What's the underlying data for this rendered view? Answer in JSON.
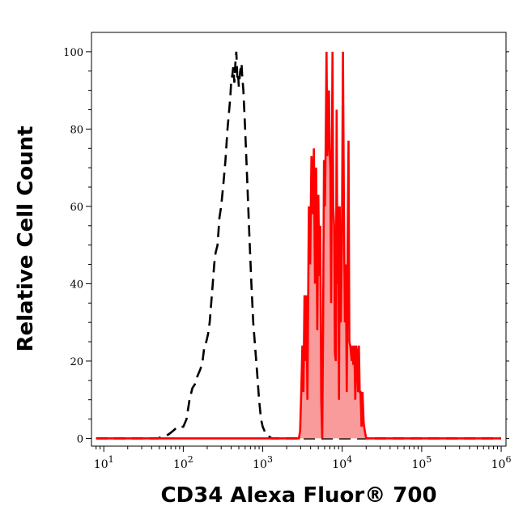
{
  "chart_data": {
    "type": "area",
    "title": "",
    "xlabel": "CD34 Alexa Fluor® 700",
    "ylabel": "Relative Cell Count",
    "xscale": "log",
    "xlim": [
      7,
      1150000.0
    ],
    "ylim": [
      -2,
      105
    ],
    "grid": false,
    "legend": "none",
    "x_ticks": [
      {
        "value": 10,
        "base": "10",
        "exp": "1"
      },
      {
        "value": 100,
        "base": "10",
        "exp": "2"
      },
      {
        "value": 1000,
        "base": "10",
        "exp": "3"
      },
      {
        "value": 10000,
        "base": "10",
        "exp": "4"
      },
      {
        "value": 100000,
        "base": "10",
        "exp": "5"
      },
      {
        "value": 1000000,
        "base": "10",
        "exp": "6"
      }
    ],
    "y_ticks": [
      {
        "value": 0,
        "label": "0"
      },
      {
        "value": 20,
        "label": "20"
      },
      {
        "value": 40,
        "label": "40"
      },
      {
        "value": 60,
        "label": "60"
      },
      {
        "value": 80,
        "label": "80"
      },
      {
        "value": 100,
        "label": "100"
      }
    ],
    "series": [
      {
        "style": "dashed",
        "color": "#000000",
        "points": [
          [
            8,
            0
          ],
          [
            20,
            0
          ],
          [
            48,
            0
          ],
          [
            55,
            0.5
          ],
          [
            65,
            1
          ],
          [
            75,
            2
          ],
          [
            85,
            3
          ],
          [
            100,
            3
          ],
          [
            110,
            5
          ],
          [
            120,
            10
          ],
          [
            130,
            13
          ],
          [
            140,
            14
          ],
          [
            150,
            16
          ],
          [
            165,
            18
          ],
          [
            175,
            20
          ],
          [
            185,
            24
          ],
          [
            195,
            25
          ],
          [
            205,
            27
          ],
          [
            215,
            30
          ],
          [
            225,
            35
          ],
          [
            235,
            40
          ],
          [
            245,
            45
          ],
          [
            255,
            48
          ],
          [
            270,
            50
          ],
          [
            285,
            57
          ],
          [
            300,
            60
          ],
          [
            320,
            66
          ],
          [
            340,
            72
          ],
          [
            360,
            80
          ],
          [
            375,
            84
          ],
          [
            390,
            88
          ],
          [
            400,
            92
          ],
          [
            415,
            94
          ],
          [
            425,
            96
          ],
          [
            440,
            92
          ],
          [
            455,
            98
          ],
          [
            465,
            100
          ],
          [
            480,
            93
          ],
          [
            490,
            94
          ],
          [
            500,
            91
          ],
          [
            520,
            95
          ],
          [
            540,
            97
          ],
          [
            550,
            94
          ],
          [
            570,
            90
          ],
          [
            600,
            80
          ],
          [
            640,
            66
          ],
          [
            680,
            52
          ],
          [
            720,
            40
          ],
          [
            760,
            30
          ],
          [
            800,
            24
          ],
          [
            850,
            17
          ],
          [
            900,
            10
          ],
          [
            950,
            5
          ],
          [
            1000,
            3
          ],
          [
            1100,
            1
          ],
          [
            1300,
            0
          ],
          [
            5000,
            0
          ],
          [
            1000000,
            0
          ]
        ]
      },
      {
        "style": "filled",
        "color": "#ff0000",
        "fill": "#f99b9b",
        "points": [
          [
            8,
            0
          ],
          [
            2700,
            0
          ],
          [
            2850,
            0
          ],
          [
            2950,
            2
          ],
          [
            3050,
            12
          ],
          [
            3150,
            24
          ],
          [
            3250,
            12
          ],
          [
            3350,
            37
          ],
          [
            3450,
            20
          ],
          [
            3550,
            37
          ],
          [
            3650,
            10
          ],
          [
            3800,
            60
          ],
          [
            3950,
            45
          ],
          [
            4100,
            73
          ],
          [
            4250,
            58
          ],
          [
            4400,
            75
          ],
          [
            4550,
            40
          ],
          [
            4700,
            70
          ],
          [
            4850,
            28
          ],
          [
            5000,
            63
          ],
          [
            5150,
            42
          ],
          [
            5300,
            55
          ],
          [
            5450,
            10
          ],
          [
            5600,
            0
          ],
          [
            5750,
            30
          ],
          [
            5900,
            72
          ],
          [
            6050,
            60
          ],
          [
            6200,
            76
          ],
          [
            6350,
            100
          ],
          [
            6500,
            73
          ],
          [
            6650,
            78
          ],
          [
            6800,
            90
          ],
          [
            6950,
            75
          ],
          [
            7100,
            70
          ],
          [
            7250,
            35
          ],
          [
            7400,
            72
          ],
          [
            7550,
            100
          ],
          [
            7700,
            60
          ],
          [
            7900,
            55
          ],
          [
            8100,
            22
          ],
          [
            8300,
            20
          ],
          [
            8500,
            85
          ],
          [
            8700,
            40
          ],
          [
            8900,
            60
          ],
          [
            9100,
            10
          ],
          [
            9300,
            60
          ],
          [
            9600,
            30
          ],
          [
            9900,
            50
          ],
          [
            10200,
            100
          ],
          [
            10500,
            60
          ],
          [
            10800,
            30
          ],
          [
            11100,
            45
          ],
          [
            11400,
            12
          ],
          [
            11700,
            50
          ],
          [
            12000,
            77
          ],
          [
            12300,
            25
          ],
          [
            12600,
            24
          ],
          [
            12900,
            22
          ],
          [
            13200,
            20
          ],
          [
            13500,
            24
          ],
          [
            13800,
            19
          ],
          [
            14200,
            24
          ],
          [
            14600,
            10
          ],
          [
            15000,
            24
          ],
          [
            15400,
            22
          ],
          [
            15800,
            12
          ],
          [
            16200,
            24
          ],
          [
            16600,
            12
          ],
          [
            17000,
            12
          ],
          [
            17500,
            3
          ],
          [
            18000,
            12
          ],
          [
            18600,
            4
          ],
          [
            19200,
            2
          ],
          [
            20000,
            0
          ],
          [
            1000000,
            0
          ]
        ]
      }
    ]
  }
}
